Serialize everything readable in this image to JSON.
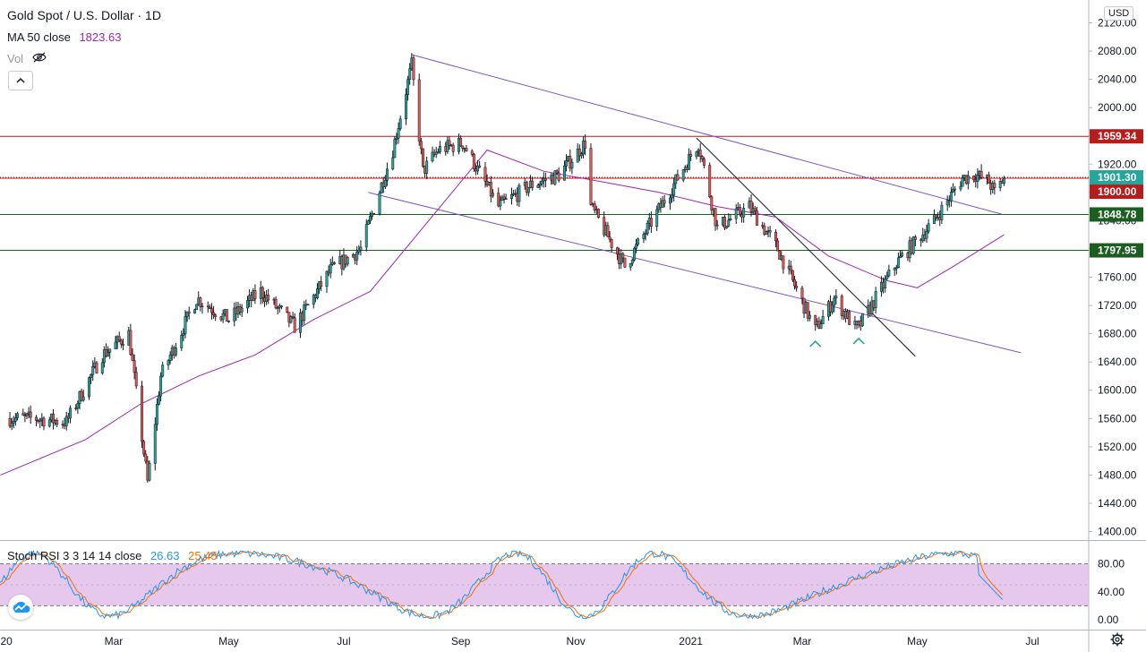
{
  "header": {
    "symbol_title": "Gold Spot / U.S. Dollar · 1D",
    "ma_label": "MA 50 close",
    "ma_value": "1823.63",
    "vol_label": "Vol",
    "collapse_icon": "chevron-up-icon",
    "currency": "USD"
  },
  "stoch": {
    "label": "Stoch RSI 3 3 14 14 close",
    "k_value": "26.63",
    "d_value": "25.45"
  },
  "colors": {
    "up_candle": "#26a69a",
    "down_candle": "#ef5350",
    "ma_line": "#9c27b0",
    "channel": "#7e57c2",
    "resistance_red": "#b71c1c",
    "support_green": "#1b5e20",
    "stoch_k": "#2196f3",
    "stoch_d": "#ff6d00",
    "stoch_band": "#e1bee7"
  },
  "chart_data": {
    "type": "candlestick",
    "title": "Gold Spot / U.S. Dollar · 1D",
    "y_ticks": [
      1400,
      1440,
      1480,
      1520,
      1560,
      1600,
      1640,
      1680,
      1720,
      1760,
      1800,
      1840,
      1880,
      1920,
      1960,
      2000,
      2040,
      2080,
      2120
    ],
    "y_tick_labels": [
      "1400.00",
      "1440.00",
      "1480.00",
      "1520.00",
      "1560.00",
      "1600.00",
      "1640.00",
      "1680.00",
      "1720.00",
      "1760.00",
      "1800.00",
      "1840.00",
      "1880.00",
      "1920.00",
      "1960.00",
      "2000.00",
      "2040.00",
      "2080.00",
      "2120.00"
    ],
    "x_ticks": [
      {
        "label": "2020",
        "date": "2020-01-01"
      },
      {
        "label": "Mar",
        "date": "2020-03-01"
      },
      {
        "label": "May",
        "date": "2020-05-01"
      },
      {
        "label": "Jul",
        "date": "2020-07-01"
      },
      {
        "label": "Sep",
        "date": "2020-09-01"
      },
      {
        "label": "Nov",
        "date": "2020-11-01"
      },
      {
        "label": "2021",
        "date": "2021-01-01"
      },
      {
        "label": "Mar",
        "date": "2021-03-01"
      },
      {
        "label": "May",
        "date": "2021-05-01"
      },
      {
        "label": "Jul",
        "date": "2021-07-01"
      }
    ],
    "price_path": [
      [
        "2020-01-06",
        1560
      ],
      [
        "2020-01-20",
        1560
      ],
      [
        "2020-02-05",
        1555
      ],
      [
        "2020-02-24",
        1650
      ],
      [
        "2020-03-09",
        1680
      ],
      [
        "2020-03-19",
        1470
      ],
      [
        "2020-03-26",
        1620
      ],
      [
        "2020-04-14",
        1730
      ],
      [
        "2020-05-01",
        1700
      ],
      [
        "2020-05-18",
        1740
      ],
      [
        "2020-06-05",
        1690
      ],
      [
        "2020-06-24",
        1770
      ],
      [
        "2020-07-10",
        1800
      ],
      [
        "2020-07-27",
        1940
      ],
      [
        "2020-08-06",
        2060
      ],
      [
        "2020-08-12",
        1910
      ],
      [
        "2020-08-20",
        1940
      ],
      [
        "2020-09-02",
        1950
      ],
      [
        "2020-09-21",
        1860
      ],
      [
        "2020-10-08",
        1890
      ],
      [
        "2020-10-23",
        1905
      ],
      [
        "2020-11-06",
        1950
      ],
      [
        "2020-11-09",
        1860
      ],
      [
        "2020-11-27",
        1775
      ],
      [
        "2020-12-16",
        1860
      ],
      [
        "2021-01-05",
        1950
      ],
      [
        "2021-01-15",
        1830
      ],
      [
        "2021-02-01",
        1860
      ],
      [
        "2021-02-16",
        1800
      ],
      [
        "2021-03-08",
        1685
      ],
      [
        "2021-03-18",
        1730
      ],
      [
        "2021-03-30",
        1685
      ],
      [
        "2021-04-20",
        1780
      ],
      [
        "2021-05-10",
        1840
      ],
      [
        "2021-05-25",
        1900
      ],
      [
        "2021-06-01",
        1905
      ],
      [
        "2021-06-08",
        1895
      ],
      [
        "2021-06-11",
        1880
      ],
      [
        "2021-06-16",
        1900
      ]
    ],
    "last_candle_date": "2021-06-16",
    "ma50_path": [
      [
        "2020-01-01",
        1480
      ],
      [
        "2020-02-15",
        1530
      ],
      [
        "2020-03-15",
        1580
      ],
      [
        "2020-04-15",
        1620
      ],
      [
        "2020-05-15",
        1650
      ],
      [
        "2020-06-15",
        1700
      ],
      [
        "2020-07-15",
        1740
      ],
      [
        "2020-08-15",
        1840
      ],
      [
        "2020-09-15",
        1940
      ],
      [
        "2020-10-15",
        1910
      ],
      [
        "2020-11-15",
        1895
      ],
      [
        "2020-12-15",
        1880
      ],
      [
        "2021-01-15",
        1860
      ],
      [
        "2021-02-15",
        1845
      ],
      [
        "2021-03-15",
        1790
      ],
      [
        "2021-04-15",
        1755
      ],
      [
        "2021-05-01",
        1745
      ],
      [
        "2021-05-20",
        1775
      ],
      [
        "2021-06-16",
        1820
      ]
    ],
    "ma50_value": 1823.63,
    "last_price": 1901.3,
    "levels": [
      {
        "price": 1959.34,
        "label": "1959.34",
        "color": "#b71c1c",
        "style": "solid"
      },
      {
        "price": 1901.3,
        "label": "1901.30",
        "color": "#26a69a",
        "style": "dotted"
      },
      {
        "price": 1900.0,
        "label": "1900.00",
        "color": "#b71c1c",
        "style": "solid"
      },
      {
        "price": 1848.78,
        "label": "1848.78",
        "color": "#1b5e20",
        "style": "solid"
      },
      {
        "price": 1797.95,
        "label": "1797.95",
        "color": "#1b5e20",
        "style": "solid"
      }
    ],
    "channel_upper": [
      [
        "2020-08-06",
        2075
      ],
      [
        "2021-06-15",
        1849
      ]
    ],
    "channel_lower": [
      [
        "2020-07-14",
        1880
      ],
      [
        "2021-06-25",
        1653
      ]
    ],
    "trendline": [
      [
        "2021-01-04",
        1957
      ],
      [
        "2021-04-30",
        1648
      ]
    ],
    "markers": [
      {
        "date": "2021-03-08",
        "price": 1668,
        "icon": "caret-up-icon"
      },
      {
        "date": "2021-03-31",
        "price": 1672,
        "icon": "caret-up-icon"
      }
    ],
    "stoch_rsi": {
      "y_ticks": [
        0,
        40,
        80
      ],
      "y_tick_labels": [
        "0.00",
        "40.00",
        "80.00"
      ],
      "band": [
        20,
        80
      ],
      "k": 26.63,
      "d": 25.45
    },
    "xlabel": "",
    "ylabel": "",
    "grid": false,
    "legend": "top-left"
  }
}
